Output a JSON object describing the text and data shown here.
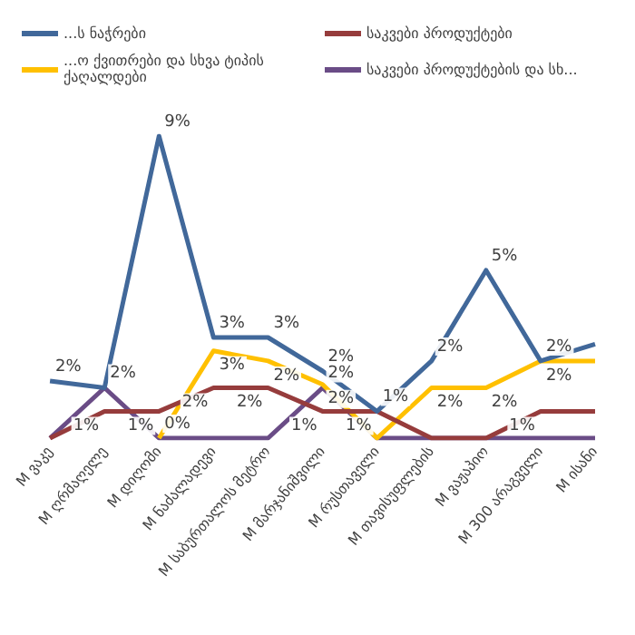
{
  "chart_data": {
    "type": "line",
    "categories": [
      "M ვაკე",
      "M ღრმაღელე",
      "M დიღომი",
      "M ნაძალადევი",
      "M საბურთალოს მეტრო",
      "M მარჯანიშვილი",
      "M რუსთაველი",
      "M თავისუფლების",
      "M ვაჟაპიო",
      "M 300 არაგველი",
      "M ისანი"
    ],
    "series": [
      {
        "name": "...ს ნაჭრები",
        "color": "#41689a",
        "values": [
          1.7,
          1.5,
          9,
          3,
          3,
          2,
          0.8,
          2.3,
          5,
          2.3,
          2.8
        ],
        "value_labels": [
          "2%",
          null,
          "9%",
          "3%",
          "3%",
          "2%",
          "1%",
          "2%",
          "5%",
          "2%",
          null
        ]
      },
      {
        "name": "საკვები პროდუქტები",
        "color": "#963c3c",
        "values": [
          0,
          0.8,
          0.8,
          1.5,
          1.5,
          0.8,
          0.8,
          0,
          0,
          0.8,
          0.8
        ],
        "value_labels": [
          null,
          "1%",
          "1%",
          "2%",
          "2%",
          "1%",
          "1%",
          null,
          null,
          "1%",
          null
        ]
      },
      {
        "name": "...ო ქვითრები და სხვა ტიპის ქაღალდები",
        "color": "#ffc000",
        "values": [
          null,
          null,
          0,
          2.6,
          2.3,
          1.6,
          0,
          1.5,
          1.5,
          2.3,
          2.3
        ],
        "value_labels": [
          null,
          null,
          null,
          "3%",
          "2%",
          "2%",
          null,
          "2%",
          "2%",
          "2%",
          null
        ]
      },
      {
        "name": "საკვები პროდუქტების და სხ...",
        "color": "#6a4c86",
        "values": [
          0,
          1.5,
          0,
          0,
          0,
          1.5,
          0,
          0,
          0,
          0,
          0
        ],
        "value_labels": [
          null,
          "2%",
          "0%",
          null,
          null,
          "2%",
          null,
          null,
          null,
          null,
          null
        ]
      }
    ],
    "legend": "top",
    "grid": false
  }
}
